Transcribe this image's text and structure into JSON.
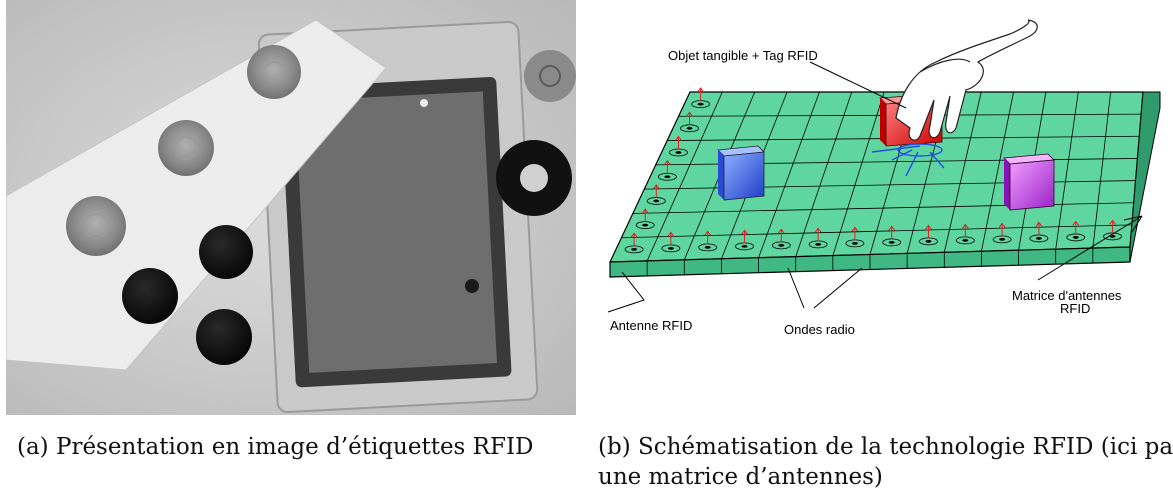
{
  "figure_a": {
    "caption": "(a) Présentation en image d’étiquettes RFID"
  },
  "figure_b": {
    "caption_line1": "(b) Schématisation de la technologie RFID (ici pa",
    "caption_line2": "une matrice d’antennes)",
    "labels": {
      "object_tag": "Objet tangible + Tag RFID",
      "antenna": "Antenne RFID",
      "radio_waves": "Ondes radio",
      "matrix_line1": "Matrice d'antennes",
      "matrix_line2": "RFID"
    },
    "colors": {
      "grid_green": "#5fd6a0",
      "cube_blue": "#3a6ff0",
      "cube_red": "#ff2a2a",
      "cube_purple": "#c040e0",
      "wave_arrow_red": "#e02020",
      "wave_arrow_blue": "#2050e0"
    }
  }
}
